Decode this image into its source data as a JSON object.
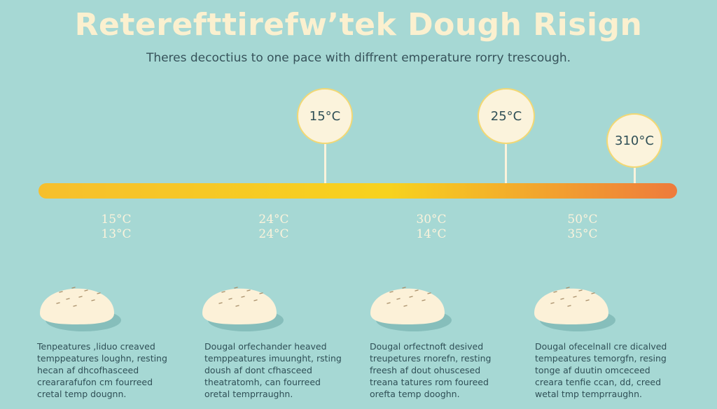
{
  "title": "Reterefttirefw’tek Dough Risign",
  "subtitle": "Theres decoctius to one pace with diffrent emperature rorry trescough.",
  "colors": {
    "background": "#a6d8d4",
    "bar_start": "#f6bf2d",
    "bar_mid": "#f7d21e",
    "bar_end": "#ee7b3c",
    "dough": "#fcf1d8",
    "dough_shadow": "#86bebb",
    "title": "#fbf0cf"
  },
  "markers": [
    {
      "label": "15°C"
    },
    {
      "label": "25°C"
    },
    {
      "label": "310°C"
    }
  ],
  "stages": [
    {
      "temps": [
        "15°C",
        "13°C"
      ],
      "lines": [
        "Tenpeatures ,liduo creaved",
        "temppeatures loughn, resting",
        "hecan af dhcofhasceed",
        "creararafufon cm fourreed",
        "cretal temp dougnn."
      ]
    },
    {
      "temps": [
        "24°C",
        "24°C"
      ],
      "lines": [
        "Dougal orfechander heaved",
        "temppeatures imuunght, rsting",
        "doush af dont cfhasceed",
        "theatratomh, can fourreed",
        "oretal temprraughn."
      ]
    },
    {
      "temps": [
        "30°C",
        "14°C"
      ],
      "lines": [
        "Dougal orfectnoft desived",
        "treupetures rnorefn, resting",
        "freesh af dout ohuscesed",
        "treana tatures rom foureed",
        "orefta temp dooghn."
      ]
    },
    {
      "temps": [
        "50°C",
        "35°C"
      ],
      "lines": [
        "Dougal ofecelnall cre dicalved",
        "tempeatures temorgfn, resing",
        "tonge af duutin omceceed",
        "creara tenfie ccan, dd, creed",
        "wetal tmp temprraughn."
      ]
    }
  ]
}
